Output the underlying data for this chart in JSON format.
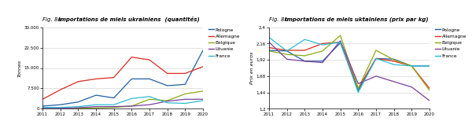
{
  "years": [
    2011,
    2012,
    2013,
    2014,
    2015,
    2016,
    2017,
    2018,
    2019,
    2020
  ],
  "fig8a_title_normal": "Fig. 8a ",
  "fig8a_title_bold": "Importations de miels ukrainiens  (quantités)",
  "fig8b_title_normal": "Fig. 8b ",
  "fig8b_title_bold": "Importations de miels uktainiens (prix par kg)",
  "ylabel_a": "Tonnes",
  "ylabel_b": "Prix en euros",
  "ylim_a": [
    0,
    30000
  ],
  "ylim_b": [
    1.2,
    2.4
  ],
  "yticks_a": [
    0,
    7500,
    15000,
    22500,
    30000
  ],
  "yticks_b": [
    1.2,
    1.44,
    1.68,
    1.92,
    2.16,
    2.4
  ],
  "ytick_labels_a": [
    "0",
    "7.500",
    "15.000",
    "22.500",
    "30.000"
  ],
  "ytick_labels_b": [
    "1,2",
    "1,44",
    "1,68",
    "1,92",
    "2,16",
    "2,4"
  ],
  "series": [
    "Pologne",
    "Allemagne",
    "Belgique",
    "Lituanie",
    "France"
  ],
  "colors": [
    "#1f5fa6",
    "#d92b1e",
    "#8aab14",
    "#7b3fa0",
    "#2bbcd4"
  ],
  "fig8a_data": {
    "Pologne": [
      1000,
      1500,
      2500,
      5000,
      4000,
      11000,
      11000,
      8500,
      9000,
      21500
    ],
    "Allemagne": [
      3500,
      7000,
      10000,
      11000,
      11500,
      19000,
      18000,
      13000,
      13000,
      15500
    ],
    "Belgique": [
      200,
      200,
      300,
      300,
      500,
      1000,
      3500,
      3000,
      5500,
      6500
    ],
    "Lituanie": [
      200,
      200,
      400,
      800,
      800,
      1000,
      1500,
      2800,
      3500,
      3500
    ],
    "France": [
      500,
      500,
      800,
      1500,
      1500,
      3800,
      4500,
      2200,
      2000,
      3000
    ]
  },
  "fig8b_data": {
    "Pologne": [
      2.06,
      2.05,
      1.9,
      1.9,
      2.17,
      1.47,
      1.94,
      1.93,
      1.83,
      1.83
    ],
    "Allemagne": [
      2.1,
      2.06,
      2.06,
      2.16,
      2.18,
      1.5,
      1.94,
      1.9,
      1.83,
      1.5
    ],
    "Belgique": [
      2.05,
      2.0,
      1.98,
      2.05,
      2.28,
      1.5,
      2.06,
      1.92,
      1.83,
      1.47
    ],
    "Lituanie": [
      2.18,
      1.93,
      1.9,
      1.88,
      2.2,
      1.57,
      1.68,
      1.6,
      1.52,
      1.32
    ],
    "France": [
      2.25,
      2.05,
      2.22,
      2.14,
      2.18,
      1.44,
      1.94,
      1.85,
      1.83,
      1.83
    ]
  }
}
